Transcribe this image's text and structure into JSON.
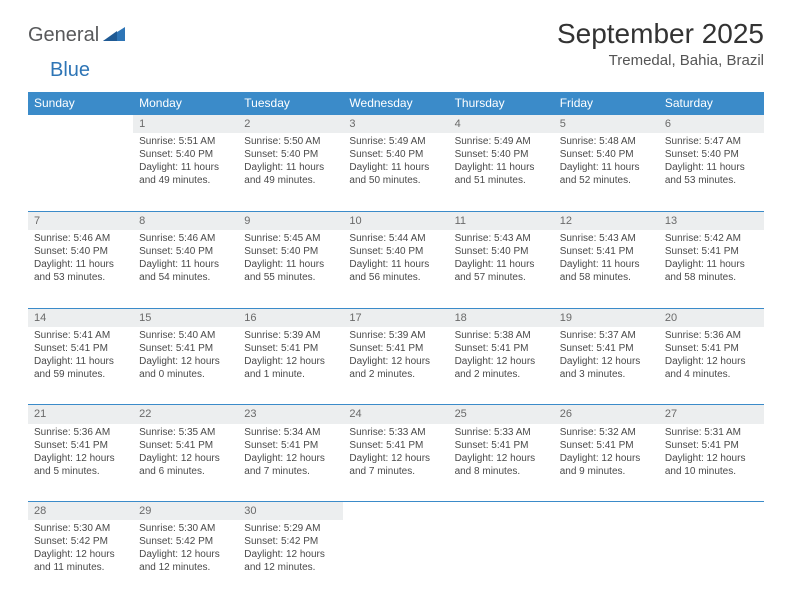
{
  "logo": {
    "part1": "General",
    "part2": "Blue"
  },
  "title": "September 2025",
  "location": "Tremedal, Bahia, Brazil",
  "colors": {
    "header_bg": "#3b8bc9",
    "header_fg": "#ffffff",
    "daynum_bg": "#eceeef",
    "daynum_fg": "#6a6a6a",
    "row_border": "#3b8bc9",
    "text": "#4a4a4a",
    "logo_gray": "#58595b",
    "logo_blue": "#2e75b6"
  },
  "weekdays": [
    "Sunday",
    "Monday",
    "Tuesday",
    "Wednesday",
    "Thursday",
    "Friday",
    "Saturday"
  ],
  "weeks": [
    [
      null,
      {
        "n": "1",
        "sr": "5:51 AM",
        "ss": "5:40 PM",
        "dl": "11 hours and 49 minutes."
      },
      {
        "n": "2",
        "sr": "5:50 AM",
        "ss": "5:40 PM",
        "dl": "11 hours and 49 minutes."
      },
      {
        "n": "3",
        "sr": "5:49 AM",
        "ss": "5:40 PM",
        "dl": "11 hours and 50 minutes."
      },
      {
        "n": "4",
        "sr": "5:49 AM",
        "ss": "5:40 PM",
        "dl": "11 hours and 51 minutes."
      },
      {
        "n": "5",
        "sr": "5:48 AM",
        "ss": "5:40 PM",
        "dl": "11 hours and 52 minutes."
      },
      {
        "n": "6",
        "sr": "5:47 AM",
        "ss": "5:40 PM",
        "dl": "11 hours and 53 minutes."
      }
    ],
    [
      {
        "n": "7",
        "sr": "5:46 AM",
        "ss": "5:40 PM",
        "dl": "11 hours and 53 minutes."
      },
      {
        "n": "8",
        "sr": "5:46 AM",
        "ss": "5:40 PM",
        "dl": "11 hours and 54 minutes."
      },
      {
        "n": "9",
        "sr": "5:45 AM",
        "ss": "5:40 PM",
        "dl": "11 hours and 55 minutes."
      },
      {
        "n": "10",
        "sr": "5:44 AM",
        "ss": "5:40 PM",
        "dl": "11 hours and 56 minutes."
      },
      {
        "n": "11",
        "sr": "5:43 AM",
        "ss": "5:40 PM",
        "dl": "11 hours and 57 minutes."
      },
      {
        "n": "12",
        "sr": "5:43 AM",
        "ss": "5:41 PM",
        "dl": "11 hours and 58 minutes."
      },
      {
        "n": "13",
        "sr": "5:42 AM",
        "ss": "5:41 PM",
        "dl": "11 hours and 58 minutes."
      }
    ],
    [
      {
        "n": "14",
        "sr": "5:41 AM",
        "ss": "5:41 PM",
        "dl": "11 hours and 59 minutes."
      },
      {
        "n": "15",
        "sr": "5:40 AM",
        "ss": "5:41 PM",
        "dl": "12 hours and 0 minutes."
      },
      {
        "n": "16",
        "sr": "5:39 AM",
        "ss": "5:41 PM",
        "dl": "12 hours and 1 minute."
      },
      {
        "n": "17",
        "sr": "5:39 AM",
        "ss": "5:41 PM",
        "dl": "12 hours and 2 minutes."
      },
      {
        "n": "18",
        "sr": "5:38 AM",
        "ss": "5:41 PM",
        "dl": "12 hours and 2 minutes."
      },
      {
        "n": "19",
        "sr": "5:37 AM",
        "ss": "5:41 PM",
        "dl": "12 hours and 3 minutes."
      },
      {
        "n": "20",
        "sr": "5:36 AM",
        "ss": "5:41 PM",
        "dl": "12 hours and 4 minutes."
      }
    ],
    [
      {
        "n": "21",
        "sr": "5:36 AM",
        "ss": "5:41 PM",
        "dl": "12 hours and 5 minutes."
      },
      {
        "n": "22",
        "sr": "5:35 AM",
        "ss": "5:41 PM",
        "dl": "12 hours and 6 minutes."
      },
      {
        "n": "23",
        "sr": "5:34 AM",
        "ss": "5:41 PM",
        "dl": "12 hours and 7 minutes."
      },
      {
        "n": "24",
        "sr": "5:33 AM",
        "ss": "5:41 PM",
        "dl": "12 hours and 7 minutes."
      },
      {
        "n": "25",
        "sr": "5:33 AM",
        "ss": "5:41 PM",
        "dl": "12 hours and 8 minutes."
      },
      {
        "n": "26",
        "sr": "5:32 AM",
        "ss": "5:41 PM",
        "dl": "12 hours and 9 minutes."
      },
      {
        "n": "27",
        "sr": "5:31 AM",
        "ss": "5:41 PM",
        "dl": "12 hours and 10 minutes."
      }
    ],
    [
      {
        "n": "28",
        "sr": "5:30 AM",
        "ss": "5:42 PM",
        "dl": "12 hours and 11 minutes."
      },
      {
        "n": "29",
        "sr": "5:30 AM",
        "ss": "5:42 PM",
        "dl": "12 hours and 12 minutes."
      },
      {
        "n": "30",
        "sr": "5:29 AM",
        "ss": "5:42 PM",
        "dl": "12 hours and 12 minutes."
      },
      null,
      null,
      null,
      null
    ]
  ],
  "labels": {
    "sunrise": "Sunrise:",
    "sunset": "Sunset:",
    "daylight": "Daylight:"
  }
}
